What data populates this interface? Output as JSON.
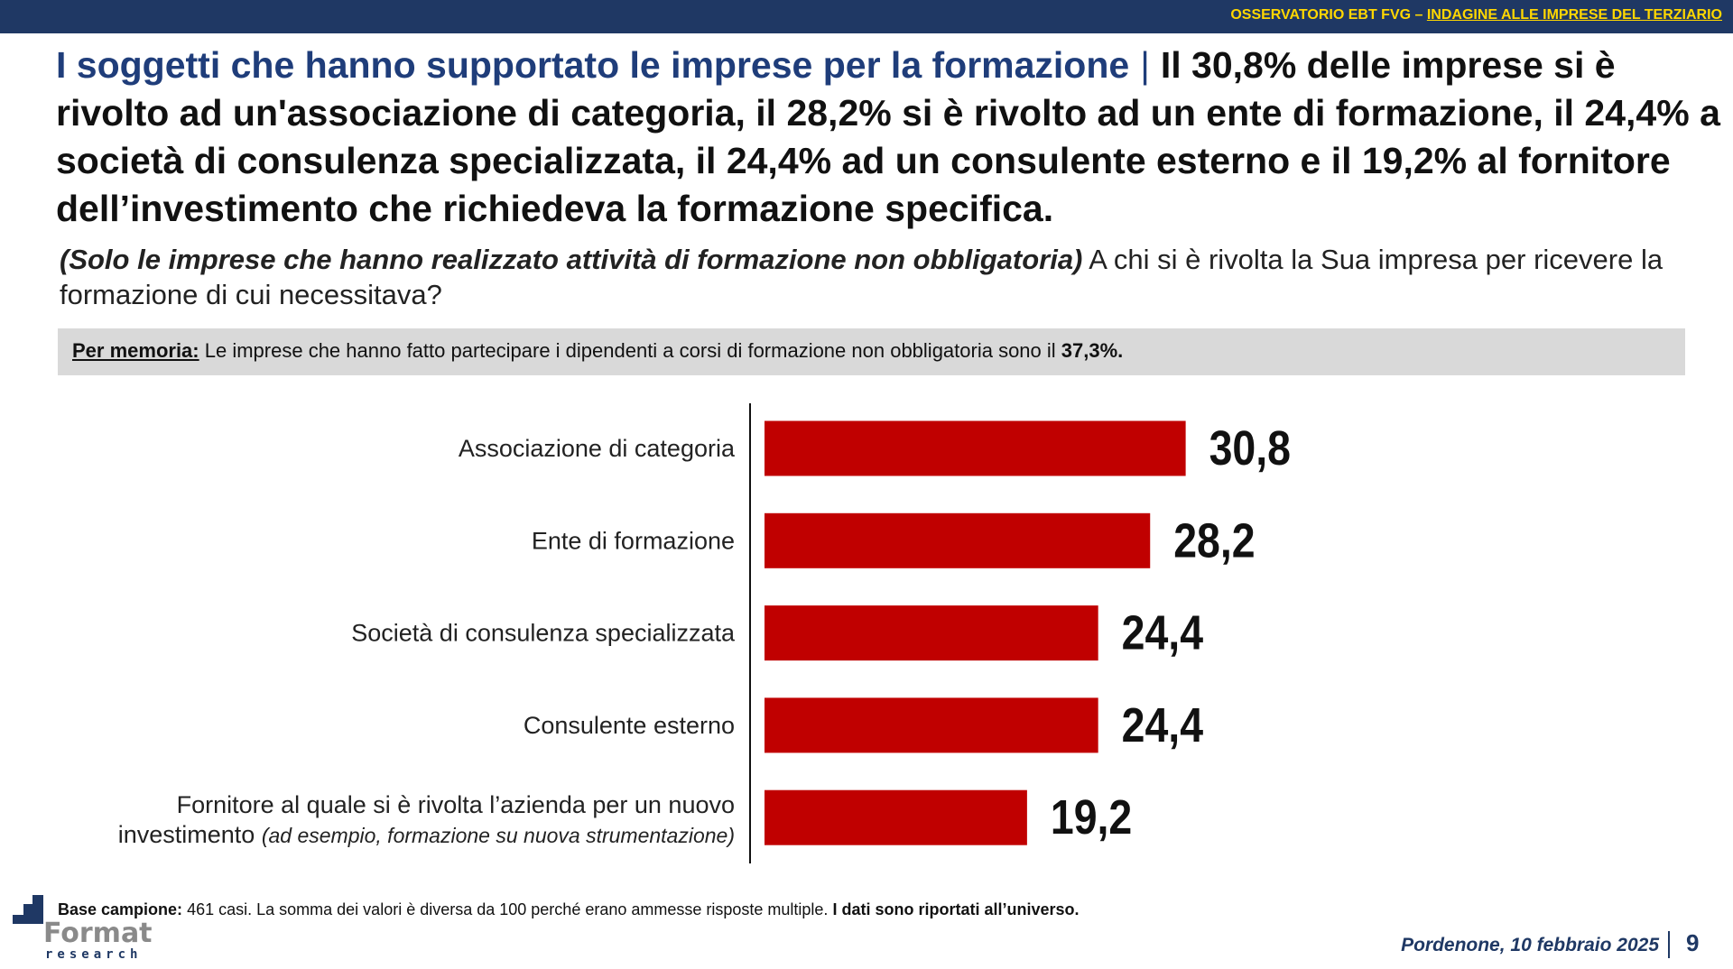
{
  "header": {
    "prefix": "OSSERVATORIO EBT FVG –",
    "link": "INDAGINE ALLE IMPRESE DEL TERZIARIO"
  },
  "title": {
    "lead": "I soggetti che hanno supportato le imprese per la formazione",
    "separator": "|",
    "text": "Il 30,8% delle imprese si è rivolto ad un'associazione di categoria, il 28,2% si è rivolto ad un ente di formazione, il 24,4% a società di consulenza specializzata, il 24,4% ad un consulente esterno e il 19,2% al fornitore dell’investimento che richiedeva la formazione specifica."
  },
  "question": {
    "filter": "(Solo le imprese che hanno realizzato attività di formazione non obbligatoria)",
    "text": "A chi si è rivolta la Sua impresa per ricevere la formazione di cui necessitava?"
  },
  "memo": {
    "label": "Per memoria:",
    "text": "Le imprese che hanno fatto partecipare i dipendenti a corsi di formazione non obbligatoria sono il",
    "value": "37,3%."
  },
  "chart_data": {
    "type": "bar",
    "orientation": "horizontal",
    "color": "#c00000",
    "categories": [
      "Associazione di categoria",
      "Ente di formazione",
      "Società di consulenza specializzata",
      "Consulente esterno",
      "Fornitore al quale si è rivolta l’azienda per un nuovo investimento"
    ],
    "last_category_note": "(ad esempio, formazione su nuova strumentazione)",
    "values": [
      30.8,
      28.2,
      24.4,
      24.4,
      19.2
    ],
    "value_labels": [
      "30,8",
      "28,2",
      "24,4",
      "24,4",
      "19,2"
    ]
  },
  "footer": {
    "base_label": "Base campione:",
    "base_text": "461 casi. La somma dei valori è diversa da 100 perché erano ammesse risposte multiple.",
    "base_note": "I dati sono riportati all’universo.",
    "logo_main": "Format",
    "logo_sub": "research",
    "place_date": "Pordenone, 10 febbraio 2025",
    "page": "9"
  }
}
